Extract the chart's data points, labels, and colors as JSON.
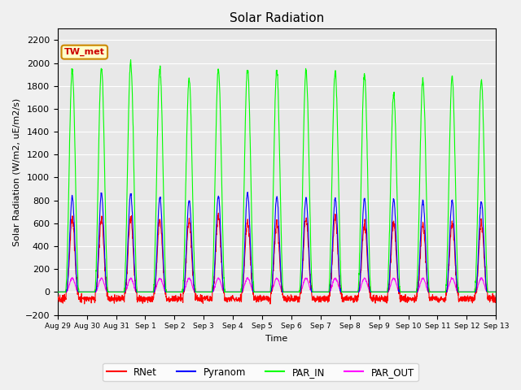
{
  "title": "Solar Radiation",
  "ylabel": "Solar Radiation (W/m2, uE/m2/s)",
  "xlabel": "Time",
  "ylim": [
    -200,
    2300
  ],
  "yticks": [
    -200,
    0,
    200,
    400,
    600,
    800,
    1000,
    1200,
    1400,
    1600,
    1800,
    2000,
    2200
  ],
  "colors": {
    "RNet": "#ff0000",
    "Pyranom": "#0000ff",
    "PAR_IN": "#00ff00",
    "PAR_OUT": "#ff00ff"
  },
  "fig_bg_color": "#f0f0f0",
  "plot_bg_color": "#e8e8e8",
  "annotation_text": "TW_met",
  "annotation_bg": "#ffffcc",
  "annotation_border": "#cc8800",
  "annotation_text_color": "#cc0000",
  "n_days": 15,
  "legend_entries": [
    "RNet",
    "Pyranom",
    "PAR_IN",
    "PAR_OUT"
  ],
  "day_labels": [
    "Aug 29",
    "Aug 30",
    "Aug 31",
    "Sep 1",
    "Sep 2",
    "Sep 3",
    "Sep 4",
    "Sep 5",
    "Sep 6",
    "Sep 7",
    "Sep 8",
    "Sep 9",
    "Sep 10",
    "Sep 11",
    "Sep 12",
    "Sep 13"
  ],
  "par_in_peaks": [
    1940,
    1960,
    2000,
    1950,
    1860,
    1940,
    1950,
    1940,
    1930,
    1920,
    1900,
    1720,
    1850,
    1870,
    1840
  ],
  "pyranom_peaks": [
    830,
    860,
    860,
    830,
    800,
    840,
    860,
    830,
    820,
    820,
    810,
    810,
    800,
    800,
    790
  ],
  "rnet_peaks": [
    650,
    640,
    640,
    630,
    620,
    650,
    630,
    610,
    650,
    650,
    600,
    600,
    600,
    610,
    610
  ],
  "par_out_peak": 120,
  "n_points_per_day": 144,
  "day_start": 0.27,
  "day_end": 0.73,
  "night_rnet": -60
}
